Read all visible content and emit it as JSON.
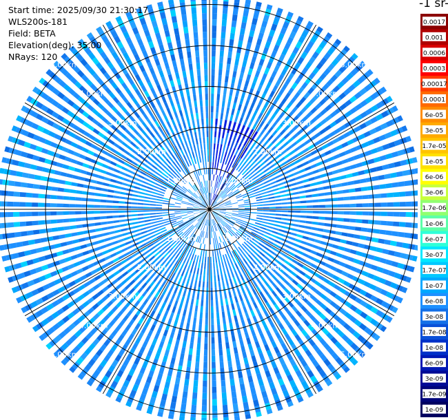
{
  "info": {
    "start_time": "Start time: 2025/09/30 21:30:17",
    "instrument": "WLS200s-181",
    "field": "Field: BETA",
    "elevation": "Elevation(deg): 35.00",
    "nrays": "NRays: 120"
  },
  "colorbar": {
    "unit_text": "-1 sr-",
    "labels": [
      "0.0017",
      "0.001",
      "0.0006",
      "0.0003",
      "0.00017",
      "0.0001",
      "6e-05",
      "3e-05",
      "1.7e-05",
      "1e-05",
      "6e-06",
      "3e-06",
      "1.7e-06",
      "1e-06",
      "6e-07",
      "3e-07",
      "1.7e-07",
      "1e-07",
      "6e-08",
      "3e-08",
      "1.7e-08",
      "1e-08",
      "6e-09",
      "3e-09",
      "1.7e-09",
      "1e-09"
    ],
    "colors": [
      "#8b0000",
      "#b00000",
      "#d80000",
      "#ff0000",
      "#ff3c00",
      "#ff6a00",
      "#ff8c00",
      "#ffaa00",
      "#ffc400",
      "#ffe000",
      "#ffff00",
      "#c8ff3c",
      "#90ff70",
      "#5cffa8",
      "#2effd8",
      "#00e8ff",
      "#00c8ff",
      "#00a8ff",
      "#1e90ff",
      "#1470e8",
      "#0a50d8",
      "#0030c8",
      "#0018b4",
      "#000a96",
      "#00047a",
      "#000060"
    ]
  },
  "chart_data": {
    "type": "heatmap",
    "projection": "polar-ppi",
    "field": "BETA",
    "elevation_deg": 35.0,
    "nrays": 120,
    "range_rings_km": [
      1,
      2,
      3,
      4,
      5
    ],
    "range_ring_labels": [
      "1.00km",
      "2.00km",
      "3.00km",
      "4.00km",
      "5.00km"
    ],
    "max_range_km": 5.2,
    "spoke_angles_deg": [
      0,
      30,
      60,
      90,
      120,
      150,
      180,
      210,
      240,
      270,
      300,
      330
    ],
    "ring_label_bearings_deg": [
      45,
      135,
      225,
      315
    ],
    "dominant_value_range": [
      "1.7e-08",
      "1e-07"
    ],
    "low_value_sector": {
      "bearing_deg": [
        0,
        30
      ],
      "range_km": [
        0,
        2.2
      ],
      "value_range": [
        "1e-09",
        "1e-08"
      ]
    }
  }
}
